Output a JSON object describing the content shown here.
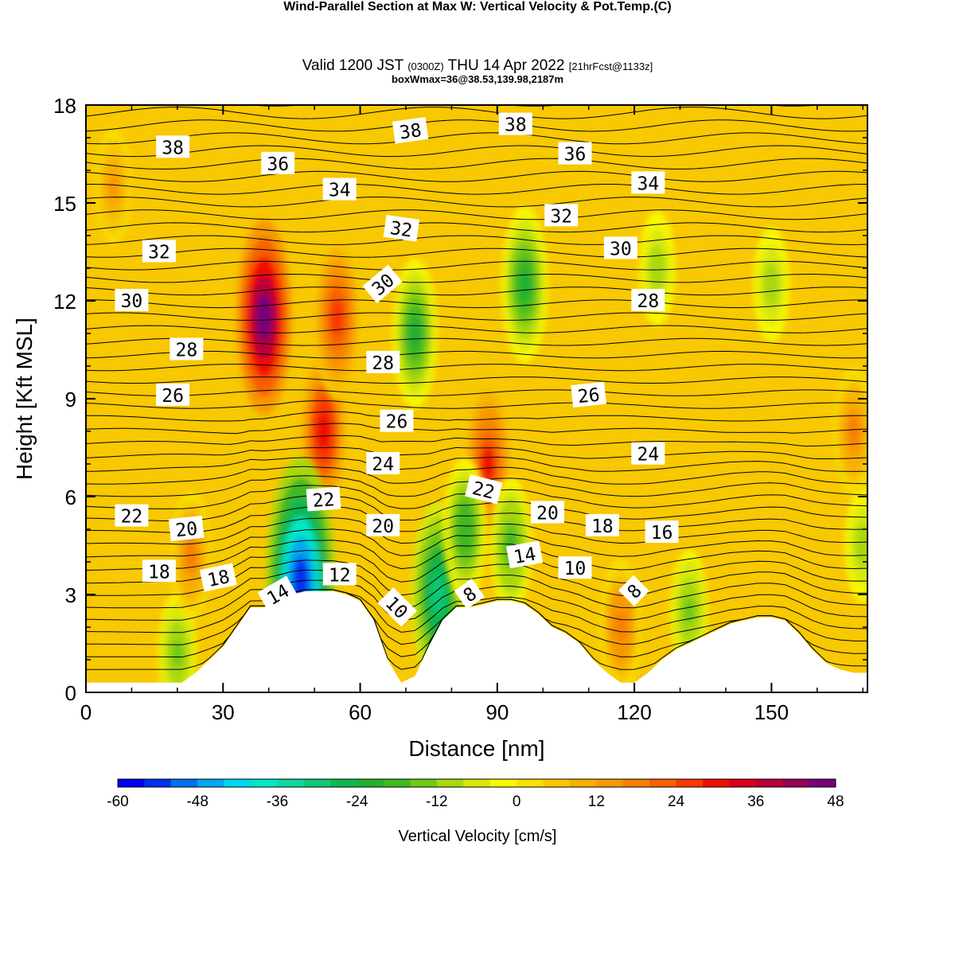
{
  "header": {
    "title": "Wind-Parallel Section at Max W: Vertical Velocity & Pot.Temp.",
    "copyright": "(C)",
    "valid_prefix": "Valid 1200 JST",
    "utc": "(0300Z)",
    "valid_date": "THU 14 Apr 2022",
    "forecast": "[21hrFcst@1133z]",
    "box": "boxWmax=36@38.53,139.98,2187m"
  },
  "chart_data": {
    "type": "heatmap",
    "xlabel": "Distance [nm]",
    "ylabel": "Height [Kft MSL]",
    "xlim": [
      0,
      171
    ],
    "ylim": [
      0,
      18
    ],
    "xticks": [
      0,
      30,
      60,
      90,
      120,
      150
    ],
    "yticks": [
      0,
      3,
      6,
      9,
      12,
      15,
      18
    ],
    "colorbar": {
      "label": "Vertical Velocity [cm/s]",
      "ticks": [
        -60,
        -48,
        -36,
        -24,
        -12,
        0,
        12,
        24,
        36,
        48
      ],
      "levels": [
        -60,
        -56,
        -52,
        -48,
        -44,
        -40,
        -36,
        -32,
        -28,
        -24,
        -20,
        -16,
        -12,
        -8,
        -4,
        0,
        4,
        8,
        12,
        16,
        20,
        24,
        28,
        32,
        36,
        40,
        44,
        48
      ],
      "colors": [
        "#0000f0",
        "#0030f0",
        "#0070f0",
        "#00a8f0",
        "#00d8f0",
        "#00e8c8",
        "#10d8a0",
        "#10c878",
        "#10b850",
        "#20b030",
        "#40b820",
        "#70c818",
        "#a8d810",
        "#d8e808",
        "#f8f800",
        "#f8e000",
        "#f8c800",
        "#f8b000",
        "#f89800",
        "#f88000",
        "#f86000",
        "#f83800",
        "#f01000",
        "#d80018",
        "#b80038",
        "#980058",
        "#780078"
      ]
    },
    "velocity_features": [
      {
        "x": 39,
        "z": 11.5,
        "w": 46
      },
      {
        "x": 52,
        "z": 8.0,
        "w": 30
      },
      {
        "x": 55,
        "z": 11.5,
        "w": 26
      },
      {
        "x": 88,
        "z": 7.0,
        "w": 28
      },
      {
        "x": 117,
        "z": 2.0,
        "w": 18
      },
      {
        "x": 96,
        "z": 12.5,
        "w": -24
      },
      {
        "x": 72,
        "z": 11.0,
        "w": -22
      },
      {
        "x": 47,
        "z": 3.4,
        "w": -56
      },
      {
        "x": 77,
        "z": 3.0,
        "w": -32
      },
      {
        "x": 83,
        "z": 5.0,
        "w": -20
      },
      {
        "x": 93,
        "z": 4.5,
        "w": -18
      },
      {
        "x": 125,
        "z": 13.0,
        "w": -12
      },
      {
        "x": 150,
        "z": 12.5,
        "w": -12
      },
      {
        "x": 20,
        "z": 1.2,
        "w": -14
      },
      {
        "x": 132,
        "z": 2.5,
        "w": -14
      },
      {
        "x": 170,
        "z": 4.5,
        "w": -12
      },
      {
        "x": 23,
        "z": 4.2,
        "w": 16
      },
      {
        "x": 6,
        "z": 15.5,
        "w": 12
      },
      {
        "x": 168,
        "z": 8.0,
        "w": 16
      }
    ],
    "terrain": [
      [
        0,
        0.3
      ],
      [
        3,
        0.3
      ],
      [
        6,
        0.3
      ],
      [
        9,
        0.3
      ],
      [
        12,
        0.3
      ],
      [
        15,
        0.3
      ],
      [
        18,
        0.3
      ],
      [
        21,
        0.3
      ],
      [
        24,
        0.6
      ],
      [
        27,
        1.0
      ],
      [
        30,
        1.4
      ],
      [
        33,
        2.0
      ],
      [
        36,
        2.6
      ],
      [
        39,
        2.6
      ],
      [
        42,
        2.8
      ],
      [
        45,
        3.0
      ],
      [
        48,
        3.1
      ],
      [
        51,
        3.1
      ],
      [
        54,
        3.1
      ],
      [
        57,
        3.0
      ],
      [
        60,
        2.8
      ],
      [
        63,
        2.2
      ],
      [
        66,
        1.0
      ],
      [
        69,
        0.3
      ],
      [
        72,
        0.5
      ],
      [
        75,
        1.4
      ],
      [
        78,
        2.2
      ],
      [
        81,
        2.6
      ],
      [
        84,
        2.6
      ],
      [
        87,
        2.7
      ],
      [
        90,
        2.8
      ],
      [
        93,
        2.8
      ],
      [
        96,
        2.7
      ],
      [
        99,
        2.4
      ],
      [
        102,
        2.0
      ],
      [
        105,
        1.8
      ],
      [
        108,
        1.5
      ],
      [
        111,
        1.0
      ],
      [
        114,
        0.6
      ],
      [
        117,
        0.3
      ],
      [
        120,
        0.3
      ],
      [
        123,
        0.6
      ],
      [
        126,
        1.0
      ],
      [
        129,
        1.3
      ],
      [
        132,
        1.5
      ],
      [
        135,
        1.7
      ],
      [
        138,
        1.9
      ],
      [
        141,
        2.1
      ],
      [
        144,
        2.2
      ],
      [
        147,
        2.3
      ],
      [
        150,
        2.3
      ],
      [
        153,
        2.2
      ],
      [
        156,
        1.8
      ],
      [
        159,
        1.3
      ],
      [
        162,
        0.9
      ],
      [
        165,
        0.7
      ],
      [
        168,
        0.6
      ],
      [
        171,
        0.6
      ]
    ],
    "theta_contour_labels": [
      {
        "text": "38",
        "x": 19,
        "z": 16.7,
        "angle": 0
      },
      {
        "text": "36",
        "x": 42,
        "z": 16.2,
        "angle": 0
      },
      {
        "text": "34",
        "x": 55.5,
        "z": 15.4,
        "angle": 0
      },
      {
        "text": "38",
        "x": 71,
        "z": 17.2,
        "angle": -8
      },
      {
        "text": "38",
        "x": 94,
        "z": 17.4,
        "angle": 0
      },
      {
        "text": "36",
        "x": 107,
        "z": 16.5,
        "angle": 0
      },
      {
        "text": "34",
        "x": 123,
        "z": 15.6,
        "angle": 0
      },
      {
        "text": "32",
        "x": 16,
        "z": 13.5,
        "angle": 0
      },
      {
        "text": "32",
        "x": 69,
        "z": 14.2,
        "angle": 8
      },
      {
        "text": "32",
        "x": 104,
        "z": 14.6,
        "angle": 0
      },
      {
        "text": "30",
        "x": 117,
        "z": 13.6,
        "angle": 0
      },
      {
        "text": "30",
        "x": 10,
        "z": 12.0,
        "angle": 0
      },
      {
        "text": "30",
        "x": 65,
        "z": 12.5,
        "angle": -40
      },
      {
        "text": "28",
        "x": 123,
        "z": 12.0,
        "angle": 0
      },
      {
        "text": "28",
        "x": 22,
        "z": 10.5,
        "angle": 0
      },
      {
        "text": "28",
        "x": 65,
        "z": 10.1,
        "angle": 0
      },
      {
        "text": "26",
        "x": 19,
        "z": 9.1,
        "angle": 0
      },
      {
        "text": "26",
        "x": 110,
        "z": 9.1,
        "angle": -6
      },
      {
        "text": "26",
        "x": 68,
        "z": 8.3,
        "angle": 0
      },
      {
        "text": "24",
        "x": 65,
        "z": 7.0,
        "angle": 0
      },
      {
        "text": "24",
        "x": 123,
        "z": 7.3,
        "angle": 0
      },
      {
        "text": "22",
        "x": 10,
        "z": 5.4,
        "angle": 0
      },
      {
        "text": "22",
        "x": 52,
        "z": 5.9,
        "angle": -4
      },
      {
        "text": "22",
        "x": 87,
        "z": 6.2,
        "angle": 14
      },
      {
        "text": "20",
        "x": 22,
        "z": 5.0,
        "angle": -6
      },
      {
        "text": "20",
        "x": 65,
        "z": 5.1,
        "angle": 0
      },
      {
        "text": "20",
        "x": 101,
        "z": 5.5,
        "angle": 0
      },
      {
        "text": "18",
        "x": 113,
        "z": 5.1,
        "angle": 0
      },
      {
        "text": "16",
        "x": 126,
        "z": 4.9,
        "angle": 0
      },
      {
        "text": "18",
        "x": 16,
        "z": 3.7,
        "angle": 0
      },
      {
        "text": "18",
        "x": 29,
        "z": 3.5,
        "angle": -12
      },
      {
        "text": "14",
        "x": 42,
        "z": 3.0,
        "angle": -30
      },
      {
        "text": "12",
        "x": 55.5,
        "z": 3.6,
        "angle": 0
      },
      {
        "text": "10",
        "x": 68,
        "z": 2.6,
        "angle": 45
      },
      {
        "text": "8",
        "x": 84,
        "z": 3.0,
        "angle": -35
      },
      {
        "text": "14",
        "x": 96,
        "z": 4.2,
        "angle": -10
      },
      {
        "text": "10",
        "x": 107,
        "z": 3.8,
        "angle": 0
      },
      {
        "text": "8",
        "x": 120,
        "z": 3.1,
        "angle": -45
      }
    ]
  }
}
